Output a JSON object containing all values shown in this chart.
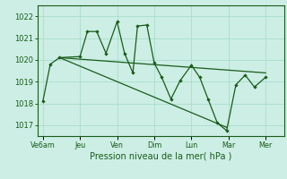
{
  "xlabel": "Pression niveau de la mer( hPa )",
  "background_color": "#cceee4",
  "grid_color": "#aaddcc",
  "line_color": "#1a5c1a",
  "ylim": [
    1016.5,
    1022.5
  ],
  "yticks": [
    1017,
    1018,
    1019,
    1020,
    1021,
    1022
  ],
  "xtick_labels": [
    "Ve6am",
    "Jeu",
    "Ven",
    "Dim",
    "Lun",
    "Mar",
    "Mer"
  ],
  "xtick_positions": [
    0,
    2,
    4,
    6,
    8,
    10,
    12
  ],
  "xlim": [
    -0.3,
    13.0
  ],
  "series1_x": [
    0,
    0.4,
    0.9,
    2.0,
    2.4,
    2.9,
    3.4,
    4.0,
    4.4,
    4.85,
    5.1,
    5.6,
    6.0,
    6.4,
    6.9,
    7.4,
    8.0,
    8.45,
    8.9,
    9.4,
    9.9,
    10.4,
    10.9,
    11.4,
    12.0
  ],
  "series1_y": [
    1018.1,
    1019.8,
    1020.1,
    1020.15,
    1021.3,
    1021.3,
    1020.3,
    1021.75,
    1020.3,
    1019.4,
    1021.55,
    1021.6,
    1019.85,
    1019.2,
    1018.2,
    1019.05,
    1019.75,
    1019.2,
    1018.2,
    1017.1,
    1016.75,
    1018.85,
    1019.3,
    1018.75,
    1019.2
  ],
  "trend1_x": [
    0.9,
    12.0
  ],
  "trend1_y": [
    1020.1,
    1019.4
  ],
  "trend2_x": [
    0.9,
    9.9
  ],
  "trend2_y": [
    1020.1,
    1016.9
  ]
}
